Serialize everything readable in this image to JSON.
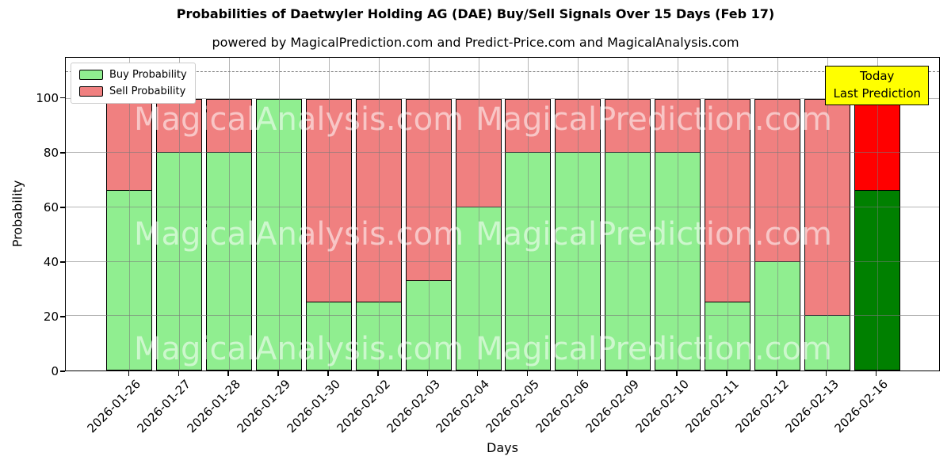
{
  "figure": {
    "title": "Probabilities of Daetwyler Holding AG (DAE) Buy/Sell Signals Over 15 Days (Feb 17)",
    "subtitle": "powered by MagicalPrediction.com and Predict-Price.com and MagicalAnalysis.com"
  },
  "axes": {
    "xlabel": "Days",
    "ylabel": "Probability",
    "yticks": [
      0,
      20,
      40,
      60,
      80,
      100
    ],
    "ylim": [
      0,
      115
    ],
    "grid": true
  },
  "legend": {
    "position": "upper left",
    "items": [
      {
        "label": "Buy Probability",
        "color": "#90EE90"
      },
      {
        "label": "Sell Probability",
        "color": "#F08080"
      }
    ]
  },
  "annotation": {
    "line1": "Today",
    "line2": "Last Prediction",
    "bg_color": "#FFFF00",
    "border_color": "#000000"
  },
  "threshold_line": {
    "value": 110,
    "color": "#7f7f7f",
    "style": "dashed"
  },
  "watermarks": {
    "texts": [
      "MagicalAnalysis.com",
      "MagicalPrediction.com"
    ],
    "color": "rgba(255,255,255,0.55)"
  },
  "chart_data": {
    "type": "bar",
    "stacked": true,
    "title": "Probabilities of Daetwyler Holding AG (DAE) Buy/Sell Signals Over 15 Days (Feb 17)",
    "xlabel": "Days",
    "ylabel": "Probability",
    "ylim": [
      0,
      115
    ],
    "grid": true,
    "legend_position": "upper left",
    "categories": [
      "2026-01-26",
      "2026-01-27",
      "2026-01-28",
      "2026-01-29",
      "2026-01-30",
      "2026-02-02",
      "2026-02-03",
      "2026-02-04",
      "2026-02-05",
      "2026-02-06",
      "2026-02-09",
      "2026-02-10",
      "2026-02-11",
      "2026-02-12",
      "2026-02-13",
      "2026-02-16"
    ],
    "series": [
      {
        "name": "Buy Probability",
        "color": "#90EE90",
        "values": [
          66,
          80,
          80,
          100,
          25,
          25,
          33,
          60,
          80,
          80,
          80,
          80,
          25,
          40,
          20,
          66
        ]
      },
      {
        "name": "Sell Probability",
        "color": "#F08080",
        "values": [
          34,
          20,
          20,
          0,
          75,
          75,
          67,
          40,
          20,
          20,
          20,
          20,
          75,
          60,
          80,
          34
        ]
      }
    ],
    "highlight_last_bar": {
      "buy_color": "#008000",
      "sell_color": "#FF0000",
      "note": "Today Last Prediction"
    },
    "bar_edge_color": "#000000"
  }
}
